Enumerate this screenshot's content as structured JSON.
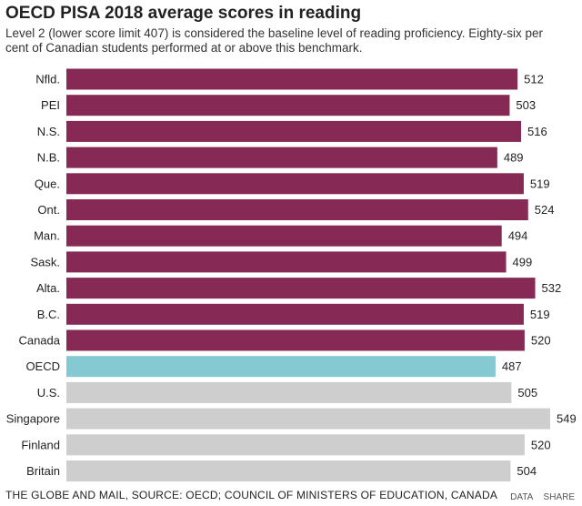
{
  "chart_data": {
    "type": "bar",
    "orientation": "horizontal",
    "title": "OECD PISA 2018 average scores in reading",
    "subtitle": "Level 2 (lower score limit 407) is considered the baseline level of reading proficiency. Eighty-six per cent of Canadian students performed at or above this benchmark.",
    "categories": [
      "Nfld.",
      "PEI",
      "N.S.",
      "N.B.",
      "Que.",
      "Ont.",
      "Man.",
      "Sask.",
      "Alta.",
      "B.C.",
      "Canada",
      "OECD",
      "U.S.",
      "Singapore",
      "Finland",
      "Britain"
    ],
    "values": [
      512,
      503,
      516,
      489,
      519,
      524,
      494,
      499,
      532,
      519,
      520,
      487,
      505,
      549,
      520,
      504
    ],
    "groups": [
      "canada",
      "canada",
      "canada",
      "canada",
      "canada",
      "canada",
      "canada",
      "canada",
      "canada",
      "canada",
      "canada",
      "oecd",
      "intl",
      "intl",
      "intl",
      "intl"
    ],
    "colors": {
      "canada": "#862a55",
      "oecd": "#85c9d3",
      "intl": "#cecece"
    },
    "xlim": [
      0,
      549
    ]
  },
  "footer": {
    "source": "THE GLOBE AND MAIL, SOURCE: OECD; COUNCIL OF MINISTERS OF EDUCATION, CANADA",
    "data_link": "DATA",
    "share_link": "SHARE"
  }
}
